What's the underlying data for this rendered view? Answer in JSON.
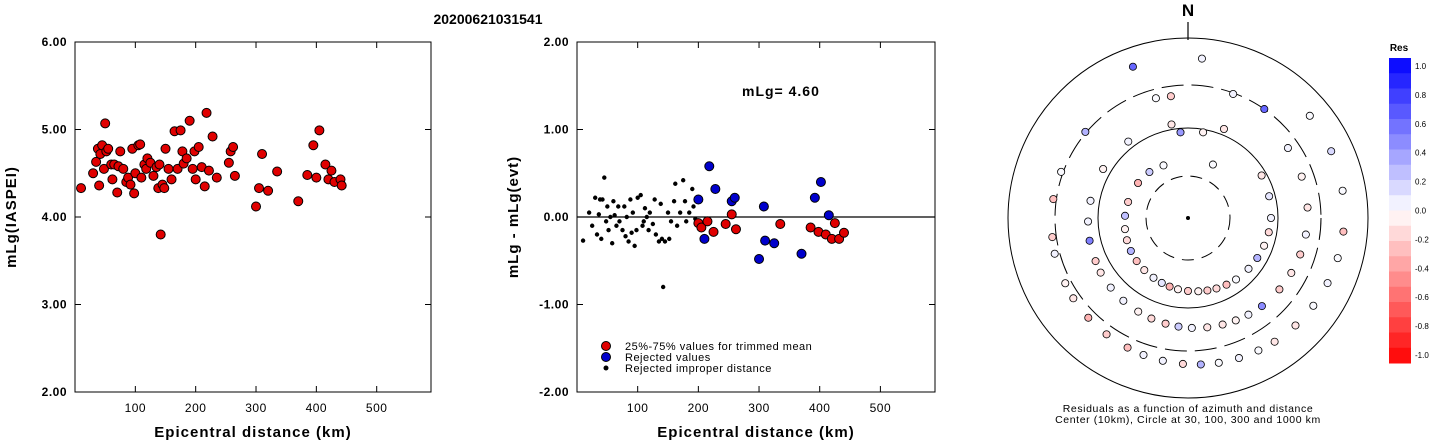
{
  "title": "20200621031541",
  "chart_data": [
    {
      "type": "scatter",
      "xlabel": "Epicentral distance (km)",
      "ylabel": "mLg(IASPEI)",
      "xlim": [
        0,
        590
      ],
      "ylim": [
        2.0,
        6.0
      ],
      "x_ticks": [
        "100",
        "200",
        "300",
        "400",
        "500"
      ],
      "y_ticks": [
        "2.00",
        "3.00",
        "4.00",
        "5.00",
        "6.00"
      ],
      "series": [
        {
          "color": "#e00000",
          "points": [
            [
              10,
              4.33
            ],
            [
              30,
              4.5
            ],
            [
              35,
              4.63
            ],
            [
              38,
              4.78
            ],
            [
              40,
              4.36
            ],
            [
              42,
              4.72
            ],
            [
              45,
              4.82
            ],
            [
              48,
              4.55
            ],
            [
              50,
              5.07
            ],
            [
              52,
              4.75
            ],
            [
              55,
              4.78
            ],
            [
              60,
              4.6
            ],
            [
              62,
              4.43
            ],
            [
              65,
              4.6
            ],
            [
              70,
              4.28
            ],
            [
              72,
              4.58
            ],
            [
              75,
              4.75
            ],
            [
              80,
              4.55
            ],
            [
              85,
              4.4
            ],
            [
              88,
              4.45
            ],
            [
              92,
              4.37
            ],
            [
              95,
              4.78
            ],
            [
              98,
              4.27
            ],
            [
              100,
              4.5
            ],
            [
              105,
              4.82
            ],
            [
              108,
              4.83
            ],
            [
              110,
              4.45
            ],
            [
              115,
              4.6
            ],
            [
              118,
              4.55
            ],
            [
              120,
              4.67
            ],
            [
              125,
              4.62
            ],
            [
              130,
              4.47
            ],
            [
              135,
              4.57
            ],
            [
              138,
              4.33
            ],
            [
              140,
              4.6
            ],
            [
              142,
              3.8
            ],
            [
              145,
              4.37
            ],
            [
              148,
              4.33
            ],
            [
              150,
              4.78
            ],
            [
              155,
              4.55
            ],
            [
              160,
              4.43
            ],
            [
              165,
              4.98
            ],
            [
              170,
              4.55
            ],
            [
              175,
              4.99
            ],
            [
              178,
              4.75
            ],
            [
              180,
              4.61
            ],
            [
              185,
              4.67
            ],
            [
              190,
              5.1
            ],
            [
              195,
              4.55
            ],
            [
              198,
              4.75
            ],
            [
              200,
              4.43
            ],
            [
              205,
              4.8
            ],
            [
              210,
              4.57
            ],
            [
              215,
              4.35
            ],
            [
              218,
              5.19
            ],
            [
              222,
              4.53
            ],
            [
              228,
              4.92
            ],
            [
              235,
              4.45
            ],
            [
              255,
              4.62
            ],
            [
              258,
              4.75
            ],
            [
              262,
              4.8
            ],
            [
              265,
              4.47
            ],
            [
              300,
              4.12
            ],
            [
              305,
              4.33
            ],
            [
              310,
              4.72
            ],
            [
              320,
              4.3
            ],
            [
              335,
              4.52
            ],
            [
              370,
              4.18
            ],
            [
              385,
              4.48
            ],
            [
              395,
              4.82
            ],
            [
              400,
              4.45
            ],
            [
              405,
              4.99
            ],
            [
              415,
              4.6
            ],
            [
              420,
              4.43
            ],
            [
              425,
              4.53
            ],
            [
              430,
              4.4
            ],
            [
              440,
              4.43
            ],
            [
              442,
              4.36
            ]
          ]
        }
      ]
    },
    {
      "type": "scatter",
      "xlabel": "Epicentral distance (km)",
      "ylabel": "mLg - mLg(evt)",
      "xlim": [
        0,
        590
      ],
      "ylim": [
        -2.0,
        2.0
      ],
      "x_ticks": [
        "100",
        "200",
        "300",
        "400",
        "500"
      ],
      "y_ticks": [
        "-2.00",
        "-1.00",
        "0.00",
        "1.00",
        "2.00"
      ],
      "annotation": "mLg= 4.60",
      "legend": {
        "placement": "bottom-left",
        "labels": [
          "25%-75% values for trimmed mean",
          "Rejected values",
          "Rejected improper distance"
        ]
      },
      "series": [
        {
          "name": "25%-75% values for trimmed mean",
          "color": "#e00000",
          "marker": "circle",
          "points": [
            [
              200,
              -0.07
            ],
            [
              205,
              -0.12
            ],
            [
              215,
              -0.05
            ],
            [
              225,
              -0.17
            ],
            [
              245,
              -0.08
            ],
            [
              255,
              0.03
            ],
            [
              262,
              -0.14
            ],
            [
              335,
              -0.08
            ],
            [
              385,
              -0.12
            ],
            [
              398,
              -0.17
            ],
            [
              410,
              -0.2
            ],
            [
              420,
              -0.25
            ],
            [
              425,
              -0.07
            ],
            [
              432,
              -0.25
            ],
            [
              440,
              -0.18
            ]
          ]
        },
        {
          "name": "Rejected values",
          "color": "#0000cc",
          "marker": "circle",
          "points": [
            [
              200,
              0.2
            ],
            [
              210,
              -0.25
            ],
            [
              218,
              0.58
            ],
            [
              228,
              0.32
            ],
            [
              255,
              0.18
            ],
            [
              260,
              0.22
            ],
            [
              300,
              -0.48
            ],
            [
              308,
              0.12
            ],
            [
              310,
              -0.27
            ],
            [
              325,
              -0.3
            ],
            [
              370,
              -0.42
            ],
            [
              392,
              0.22
            ],
            [
              402,
              0.4
            ],
            [
              415,
              0.02
            ]
          ]
        },
        {
          "name": "Rejected improper distance",
          "color": "#000000",
          "marker": "dot",
          "points": [
            [
              10,
              -0.27
            ],
            [
              20,
              0.05
            ],
            [
              25,
              -0.1
            ],
            [
              30,
              0.22
            ],
            [
              33,
              -0.2
            ],
            [
              36,
              0.03
            ],
            [
              38,
              0.2
            ],
            [
              40,
              -0.25
            ],
            [
              42,
              0.2
            ],
            [
              45,
              0.45
            ],
            [
              48,
              -0.05
            ],
            [
              50,
              0.12
            ],
            [
              52,
              -0.15
            ],
            [
              55,
              0.0
            ],
            [
              58,
              -0.3
            ],
            [
              60,
              0.18
            ],
            [
              62,
              0.02
            ],
            [
              65,
              -0.1
            ],
            [
              68,
              0.12
            ],
            [
              70,
              -0.05
            ],
            [
              75,
              -0.15
            ],
            [
              78,
              0.12
            ],
            [
              80,
              -0.22
            ],
            [
              82,
              0.0
            ],
            [
              85,
              -0.28
            ],
            [
              88,
              0.2
            ],
            [
              90,
              -0.18
            ],
            [
              92,
              0.05
            ],
            [
              95,
              -0.33
            ],
            [
              98,
              -0.15
            ],
            [
              100,
              0.22
            ],
            [
              105,
              0.25
            ],
            [
              108,
              -0.1
            ],
            [
              110,
              -0.05
            ],
            [
              112,
              0.1
            ],
            [
              115,
              0.0
            ],
            [
              118,
              -0.15
            ],
            [
              120,
              0.05
            ],
            [
              125,
              -0.08
            ],
            [
              128,
              0.2
            ],
            [
              130,
              -0.2
            ],
            [
              135,
              -0.28
            ],
            [
              138,
              0.15
            ],
            [
              140,
              -0.25
            ],
            [
              142,
              -0.8
            ],
            [
              145,
              -0.28
            ],
            [
              150,
              0.05
            ],
            [
              152,
              -0.25
            ],
            [
              155,
              -0.05
            ],
            [
              160,
              0.18
            ],
            [
              162,
              0.38
            ],
            [
              165,
              -0.1
            ],
            [
              170,
              0.05
            ],
            [
              175,
              0.42
            ],
            [
              178,
              0.18
            ],
            [
              180,
              -0.05
            ],
            [
              185,
              0.05
            ],
            [
              190,
              0.32
            ],
            [
              192,
              0.12
            ],
            [
              195,
              -0.02
            ]
          ]
        }
      ]
    },
    {
      "type": "scatter",
      "subtype": "polar-residuals",
      "north_label": "N",
      "caption": [
        "Residuals as a function of azimuth and distance",
        "Center (10km), Circle at 30, 100, 300 and 1000 km"
      ],
      "radial_circles_km": [
        30,
        100,
        300,
        1000
      ],
      "colorbar": {
        "title": "Res",
        "range": [
          -1.0,
          1.0
        ],
        "tick_labels": [
          "1.0",
          "0.8",
          "0.6",
          "0.4",
          "0.2",
          "0.0",
          "-0.2",
          "-0.4",
          "-0.6",
          "-0.8",
          "-1.0"
        ],
        "color_positive": "#0000ff",
        "color_negative": "#ff0000"
      },
      "stations": [
        [
          -25,
          0.02
        ],
        [
          -10,
          -0.1
        ],
        [
          20,
          0.05
        ],
        [
          25,
          0.02
        ],
        [
          22,
          -0.1
        ],
        [
          35,
          0.6
        ],
        [
          -40,
          0.2
        ],
        [
          -38,
          0.05
        ],
        [
          -50,
          0.3
        ],
        [
          -55,
          -0.3
        ],
        [
          -60,
          -0.05
        ],
        [
          -70,
          0.02
        ],
        [
          -75,
          -0.2
        ],
        [
          -80,
          0.05
        ],
        [
          -82,
          -0.25
        ],
        [
          -88,
          0.25
        ],
        [
          -92,
          0.05
        ],
        [
          -98,
          -0.2
        ],
        [
          -100,
          -0.05
        ],
        [
          -103,
          0.5
        ],
        [
          -105,
          0.05
        ],
        [
          -110,
          -0.15
        ],
        [
          -115,
          -0.2
        ],
        [
          -118,
          -0.05
        ],
        [
          -120,
          0.3
        ],
        [
          -122,
          -0.1
        ],
        [
          -125,
          -0.1
        ],
        [
          -130,
          -0.25
        ],
        [
          -132,
          0.05
        ],
        [
          -135,
          -0.3
        ],
        [
          -140,
          -0.1
        ],
        [
          -142,
          0.05
        ],
        [
          -145,
          -0.2
        ],
        [
          -150,
          0.05
        ],
        [
          -152,
          -0.05
        ],
        [
          -155,
          -0.25
        ],
        [
          -158,
          0.1
        ],
        [
          -160,
          -0.15
        ],
        [
          -162,
          0.05
        ],
        [
          -165,
          -0.3
        ],
        [
          -168,
          -0.2
        ],
        [
          -170,
          0.05
        ],
        [
          -172,
          -0.05
        ],
        [
          -175,
          0.2
        ],
        [
          -178,
          -0.15
        ],
        [
          180,
          -0.2
        ],
        [
          178,
          0.05
        ],
        [
          175,
          0.3
        ],
        [
          172,
          -0.05
        ],
        [
          170,
          -0.1
        ],
        [
          168,
          0.02
        ],
        [
          165,
          -0.2
        ],
        [
          162,
          -0.1
        ],
        [
          160,
          0.05
        ],
        [
          158,
          -0.15
        ],
        [
          155,
          -0.05
        ],
        [
          152,
          0.02
        ],
        [
          150,
          -0.25
        ],
        [
          148,
          0.05
        ],
        [
          145,
          -0.1
        ],
        [
          142,
          0.02
        ],
        [
          140,
          0.45
        ],
        [
          135,
          -0.1
        ],
        [
          130,
          0.05
        ],
        [
          128,
          -0.2
        ],
        [
          125,
          0.02
        ],
        [
          120,
          0.3
        ],
        [
          118,
          -0.1
        ],
        [
          115,
          0.05
        ],
        [
          110,
          -0.05
        ],
        [
          108,
          -0.2
        ],
        [
          105,
          0.02
        ],
        [
          100,
          -0.15
        ],
        [
          98,
          0.05
        ],
        [
          95,
          -0.25
        ],
        [
          90,
          0.05
        ],
        [
          85,
          -0.1
        ],
        [
          80,
          0.02
        ],
        [
          75,
          0.1
        ],
        [
          70,
          -0.05
        ],
        [
          65,
          0.15
        ],
        [
          60,
          -0.1
        ],
        [
          55,
          0.05
        ],
        [
          50,
          0.02
        ],
        [
          -5,
          0.4
        ],
        [
          -8,
          -0.2
        ],
        [
          5,
          0.05
        ],
        [
          10,
          -0.05
        ],
        [
          -15,
          0.02
        ],
        [
          -20,
          0.6
        ]
      ]
    }
  ]
}
